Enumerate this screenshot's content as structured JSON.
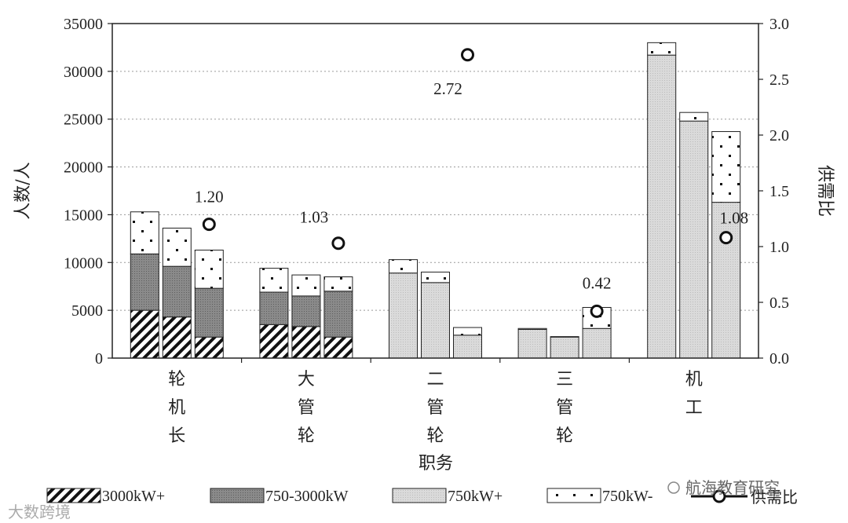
{
  "chart_data": {
    "type": "bar",
    "xlabel": "职务",
    "ylabel": "人数/人",
    "y2label": "供需比",
    "ylim": [
      0,
      35000
    ],
    "y2lim": [
      0,
      3.0
    ],
    "yticks": [
      0,
      5000,
      10000,
      15000,
      20000,
      25000,
      30000,
      35000
    ],
    "y2ticks": [
      "0.0",
      "0.5",
      "1.0",
      "1.5",
      "2.0",
      "2.5",
      "3.0"
    ],
    "grid": true,
    "legend_position": "bottom",
    "groups": [
      {
        "label": [
          "轮",
          "机",
          "长"
        ],
        "bars": [
          {
            "3000kW+": 5000,
            "750-3000kW": 5900,
            "750kW+": 0,
            "750kW-": 4400
          },
          {
            "3000kW+": 4300,
            "750-3000kW": 5300,
            "750kW+": 0,
            "750kW-": 4000
          },
          {
            "3000kW+": 2200,
            "750-3000kW": 5100,
            "750kW+": 0,
            "750kW-": 4000
          }
        ],
        "ratio": 1.2,
        "ratio_label": "1.20"
      },
      {
        "label": [
          "大",
          "管",
          "轮"
        ],
        "bars": [
          {
            "3000kW+": 3500,
            "750-3000kW": 3400,
            "750kW+": 0,
            "750kW-": 2500
          },
          {
            "3000kW+": 3300,
            "750-3000kW": 3200,
            "750kW+": 0,
            "750kW-": 2200
          },
          {
            "3000kW+": 2200,
            "750-3000kW": 4800,
            "750kW+": 0,
            "750kW-": 1500
          }
        ],
        "ratio": 1.03,
        "ratio_label": "1.03"
      },
      {
        "label": [
          "二",
          "管",
          "轮"
        ],
        "bars": [
          {
            "3000kW+": 0,
            "750-3000kW": 0,
            "750kW+": 8900,
            "750kW-": 1400
          },
          {
            "3000kW+": 0,
            "750-3000kW": 0,
            "750kW+": 7900,
            "750kW-": 1100
          },
          {
            "3000kW+": 0,
            "750-3000kW": 0,
            "750kW+": 2400,
            "750kW-": 800
          }
        ],
        "ratio": 2.72,
        "ratio_label": "2.72"
      },
      {
        "label": [
          "三",
          "管",
          "轮"
        ],
        "bars": [
          {
            "3000kW+": 0,
            "750-3000kW": 0,
            "750kW+": 3000,
            "750kW-": 100
          },
          {
            "3000kW+": 0,
            "750-3000kW": 0,
            "750kW+": 2200,
            "750kW-": 50
          },
          {
            "3000kW+": 0,
            "750-3000kW": 0,
            "750kW+": 3100,
            "750kW-": 2200
          }
        ],
        "ratio": 0.42,
        "ratio_label": "0.42"
      },
      {
        "label": [
          "机",
          "工"
        ],
        "bars": [
          {
            "3000kW+": 0,
            "750-3000kW": 0,
            "750kW+": 31700,
            "750kW-": 1300
          },
          {
            "3000kW+": 0,
            "750-3000kW": 0,
            "750kW+": 24800,
            "750kW-": 900
          },
          {
            "3000kW+": 0,
            "750-3000kW": 0,
            "750kW+": 16300,
            "750kW-": 7400
          }
        ],
        "ratio": 1.08,
        "ratio_label": "1.08"
      }
    ],
    "series": [
      {
        "name": "3000kW+",
        "pattern": "hatch"
      },
      {
        "name": "750-3000kW",
        "pattern": "dark-grey",
        "color": "#8c8c8c"
      },
      {
        "name": "750kW+",
        "pattern": "light-grey",
        "color": "#d9d9d9"
      },
      {
        "name": "750kW-",
        "pattern": "dots"
      },
      {
        "name": "供需比",
        "type": "marker-line"
      }
    ]
  },
  "watermarks": [
    "航海教育研究",
    "大数跨境"
  ]
}
